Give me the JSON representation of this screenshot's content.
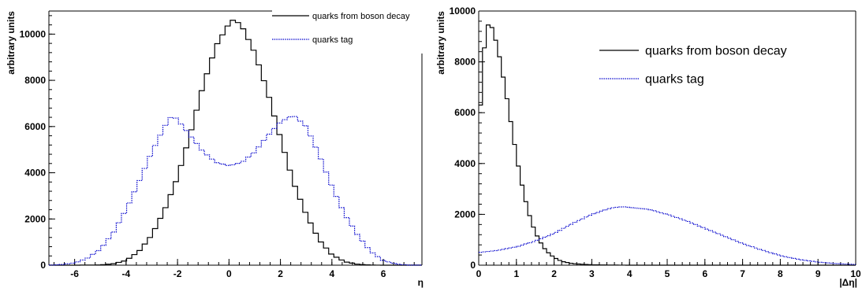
{
  "chart_data": [
    {
      "type": "line",
      "step": true,
      "xlabel": "η",
      "ylabel": "arbitrary units",
      "xlim": [
        -7,
        7.5
      ],
      "ylim": [
        0,
        11000
      ],
      "xticks": [
        -6,
        -4,
        -2,
        0,
        2,
        4,
        6
      ],
      "yticks": [
        0,
        2000,
        4000,
        6000,
        8000,
        10000
      ],
      "legend_position": "top-right",
      "series": [
        {
          "name": "quarks from boson decay",
          "color": "#000000",
          "dash": "solid",
          "points": [
            [
              -7,
              0
            ],
            [
              -6,
              0
            ],
            [
              -5,
              10
            ],
            [
              -4.5,
              60
            ],
            [
              -4,
              200
            ],
            [
              -3.5,
              600
            ],
            [
              -3,
              1300
            ],
            [
              -2.5,
              2400
            ],
            [
              -2,
              3800
            ],
            [
              -1.5,
              5700
            ],
            [
              -1,
              7800
            ],
            [
              -0.5,
              9500
            ],
            [
              0,
              10450
            ],
            [
              0.2,
              10650
            ],
            [
              0.5,
              10350
            ],
            [
              1,
              9200
            ],
            [
              1.5,
              7500
            ],
            [
              2,
              5500
            ],
            [
              2.5,
              3600
            ],
            [
              3,
              2200
            ],
            [
              3.5,
              1100
            ],
            [
              4,
              450
            ],
            [
              4.5,
              150
            ],
            [
              5,
              40
            ],
            [
              5.5,
              5
            ],
            [
              6,
              0
            ],
            [
              7,
              0
            ]
          ]
        },
        {
          "name": "quarks tag",
          "color": "#0000cc",
          "dash": "dotted",
          "points": [
            [
              -7,
              0
            ],
            [
              -6.5,
              30
            ],
            [
              -6,
              100
            ],
            [
              -5.5,
              300
            ],
            [
              -5,
              700
            ],
            [
              -4.5,
              1400
            ],
            [
              -4,
              2400
            ],
            [
              -3.5,
              3600
            ],
            [
              -3,
              4900
            ],
            [
              -2.5,
              6000
            ],
            [
              -2.2,
              6500
            ],
            [
              -2,
              6300
            ],
            [
              -1.5,
              5600
            ],
            [
              -1,
              4900
            ],
            [
              -0.5,
              4450
            ],
            [
              0,
              4300
            ],
            [
              0.5,
              4450
            ],
            [
              1,
              4900
            ],
            [
              1.5,
              5600
            ],
            [
              2,
              6200
            ],
            [
              2.5,
              6500
            ],
            [
              3,
              6000
            ],
            [
              3.5,
              4800
            ],
            [
              4,
              3400
            ],
            [
              4.5,
              2200
            ],
            [
              5,
              1300
            ],
            [
              5.5,
              600
            ],
            [
              6,
              200
            ],
            [
              6.5,
              50
            ],
            [
              7,
              5
            ]
          ]
        }
      ]
    },
    {
      "type": "line",
      "step": true,
      "xlabel": "|Δη|",
      "ylabel": "arbitrary units",
      "xlim": [
        0,
        10
      ],
      "ylim": [
        0,
        10000
      ],
      "xticks": [
        0,
        1,
        2,
        3,
        4,
        5,
        6,
        7,
        8,
        9,
        10
      ],
      "yticks": [
        0,
        2000,
        4000,
        6000,
        8000,
        10000
      ],
      "legend_position": "top-right",
      "series": [
        {
          "name": "quarks from boson decay",
          "color": "#000000",
          "dash": "solid",
          "points": [
            [
              0,
              4800
            ],
            [
              0.1,
              7800
            ],
            [
              0.2,
              9300
            ],
            [
              0.3,
              9600
            ],
            [
              0.4,
              9100
            ],
            [
              0.5,
              8600
            ],
            [
              0.6,
              7800
            ],
            [
              0.7,
              7000
            ],
            [
              0.8,
              6100
            ],
            [
              0.9,
              5200
            ],
            [
              1,
              4300
            ],
            [
              1.1,
              3500
            ],
            [
              1.2,
              2800
            ],
            [
              1.3,
              2200
            ],
            [
              1.4,
              1700
            ],
            [
              1.5,
              1300
            ],
            [
              1.6,
              1000
            ],
            [
              1.7,
              750
            ],
            [
              1.8,
              550
            ],
            [
              2,
              300
            ],
            [
              2.2,
              150
            ],
            [
              2.5,
              60
            ],
            [
              3,
              15
            ],
            [
              3.5,
              5
            ],
            [
              4,
              0
            ],
            [
              10,
              0
            ]
          ]
        },
        {
          "name": "quarks tag",
          "color": "#0000cc",
          "dash": "dotted",
          "points": [
            [
              0,
              500
            ],
            [
              0.5,
              580
            ],
            [
              1,
              720
            ],
            [
              1.5,
              950
            ],
            [
              2,
              1250
            ],
            [
              2.5,
              1650
            ],
            [
              3,
              2000
            ],
            [
              3.5,
              2250
            ],
            [
              3.8,
              2300
            ],
            [
              4.5,
              2200
            ],
            [
              5,
              2000
            ],
            [
              5.5,
              1750
            ],
            [
              6,
              1450
            ],
            [
              6.5,
              1150
            ],
            [
              7,
              850
            ],
            [
              7.5,
              600
            ],
            [
              8,
              380
            ],
            [
              8.5,
              220
            ],
            [
              9,
              120
            ],
            [
              9.5,
              60
            ],
            [
              10,
              30
            ]
          ]
        }
      ]
    }
  ]
}
